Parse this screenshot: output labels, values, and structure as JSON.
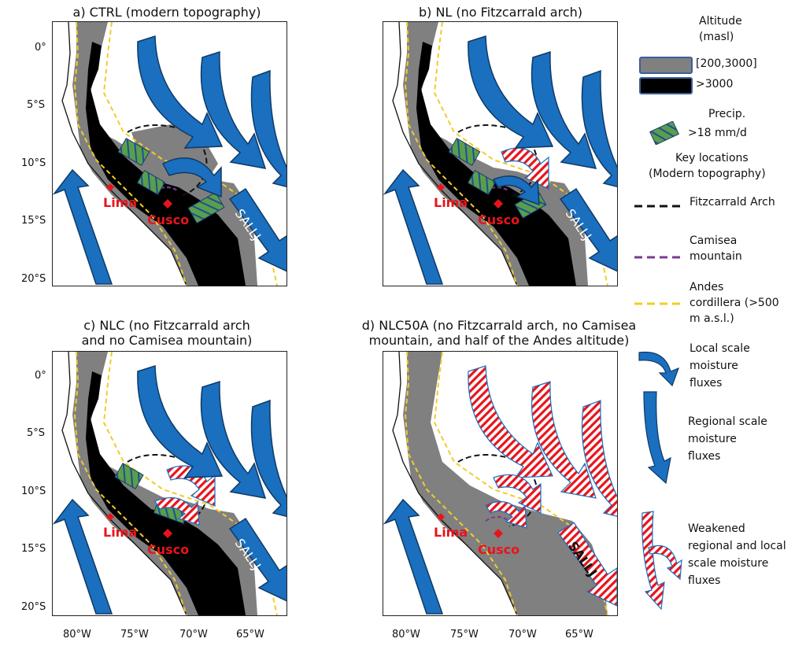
{
  "panels": [
    {
      "title": "a) CTRL (modern topography)"
    },
    {
      "title": "b) NL (no Fitzcarrald arch)"
    },
    {
      "title_line1": "c) NLC (no Fitzcarrald arch",
      "title_line2": "and no Camisea mountain)"
    },
    {
      "title_line1": "d) NLC50A (no Fitzcarrald arch, no Camisea",
      "title_line2": "mountain, and half of the Andes altitude)"
    }
  ],
  "axes": {
    "y_ticks": [
      "0°",
      "5°S",
      "10°S",
      "15°S",
      "20°S"
    ],
    "x_ticks": [
      "80°W",
      "75°W",
      "70°W",
      "65°W"
    ]
  },
  "cities": {
    "lima": "Lima",
    "cusco": "Cusco"
  },
  "sallj_label": "SALLJ",
  "legend": {
    "altitude_title_1": "Altitude",
    "altitude_title_2": "(masl)",
    "alt_gray": "[200,3000]",
    "alt_black": ">3000",
    "precip_title": "Precip.",
    "precip_value": ">18 mm/d",
    "key_title_1": "Key locations",
    "key_title_2": "(Modern topography)",
    "fitz": "Fitzcarrald Arch",
    "camisea_1": "Camisea",
    "camisea_2": "mountain",
    "andes_1": "Andes",
    "andes_2": "cordillera (>500",
    "andes_3": "m a.s.l.)",
    "local_1": "Local scale",
    "local_2": "moisture",
    "local_3": "fluxes",
    "regional_1": "Regional scale",
    "regional_2": "moisture",
    "regional_3": "fluxes",
    "weak_1": "Weakened",
    "weak_2": "regional and local",
    "weak_3": "scale moisture",
    "weak_4": "fluxes"
  },
  "colors": {
    "arrow_blue": "#1a6fbf",
    "altitude_gray": "#808080",
    "altitude_black": "#000000",
    "precip_green": "#5a9e4b",
    "city_red": "#e8141c",
    "andes_yellow": "#f2cc2a",
    "camisea_purple": "#7a3b8f"
  }
}
